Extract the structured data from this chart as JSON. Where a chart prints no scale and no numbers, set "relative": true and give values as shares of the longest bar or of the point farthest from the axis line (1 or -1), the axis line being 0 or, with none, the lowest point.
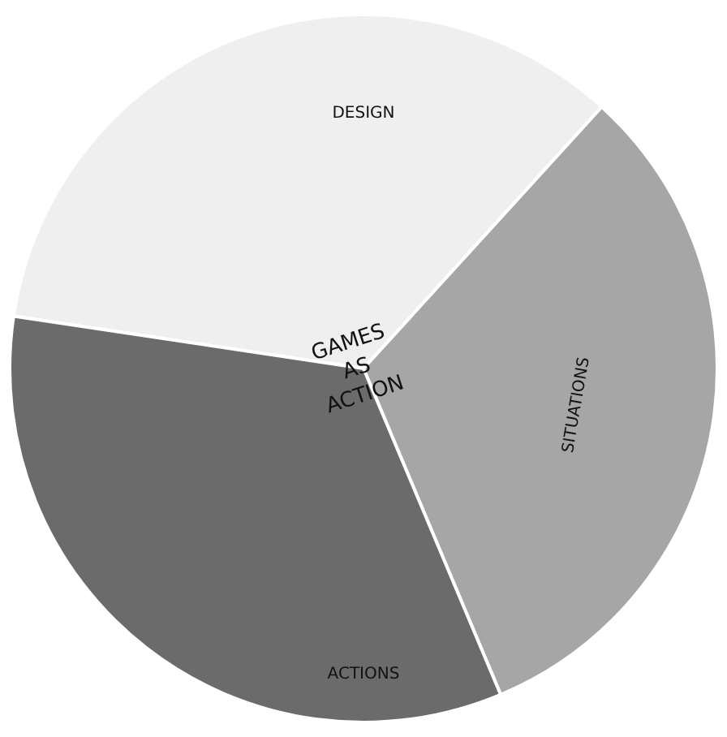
{
  "chart_data": {
    "type": "pie",
    "relative": true,
    "categories": [
      "DESIGN",
      "SITUATIONS",
      "ACTIONS"
    ],
    "values": [
      34.4,
      31.9,
      33.7
    ],
    "colors": [
      "#efefef",
      "#a6a6a6",
      "#6b6b6b"
    ],
    "annotations": [
      "GAMES\nAS\nACTION"
    ],
    "legend": false
  }
}
